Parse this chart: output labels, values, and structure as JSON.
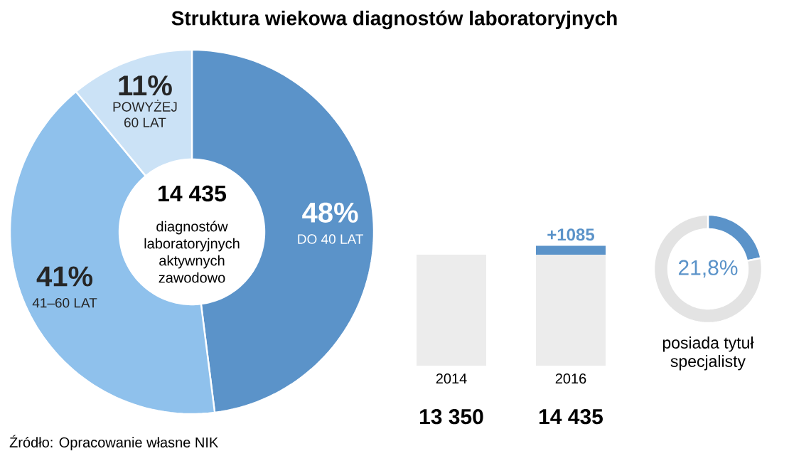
{
  "chart_data": [
    {
      "type": "donut",
      "title": "Struktura wiekowa diagnostów laboratoryjnych",
      "categories": [
        "DO 40 LAT",
        "41–60 LAT",
        "POWYŻEJ 60 LAT"
      ],
      "values": [
        48,
        41,
        11
      ],
      "colors": [
        "#5b93c9",
        "#8fc1ec",
        "#cbe2f6"
      ],
      "value_labels": [
        "48%",
        "41%",
        "11%"
      ],
      "annotations": [
        "14 435",
        "diagnostów laboratoryjnych aktywnych zawodowo",
        "Źródło: Opracowanie własne NIK"
      ]
    },
    {
      "type": "bar",
      "stacked": true,
      "categories": [
        "2014",
        "2016"
      ],
      "series": [
        {
          "color": "#ececec",
          "values": [
            13350,
            13350
          ]
        },
        {
          "color": "#5b93c9",
          "values": [
            null,
            1085
          ],
          "value_labels": [
            null,
            "+1085"
          ]
        }
      ],
      "totals": [
        "13 350",
        "14 435"
      ]
    },
    {
      "type": "donut",
      "categories": [
        null,
        null
      ],
      "values": [
        21.8,
        78.2
      ],
      "colors": [
        "#5b93c9",
        "#e3e3e3"
      ],
      "value_labels": [
        "21,8%",
        null
      ],
      "annotations": [
        "posiada tytuł specjalisty"
      ]
    }
  ]
}
